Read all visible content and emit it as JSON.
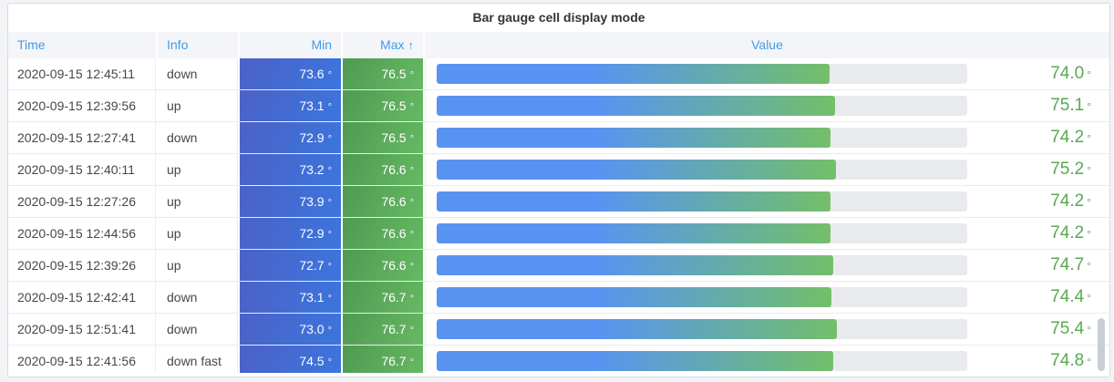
{
  "panel": {
    "title": "Bar gauge cell display mode"
  },
  "table": {
    "columns": [
      {
        "label": "Time",
        "align": "left"
      },
      {
        "label": "Info",
        "align": "left"
      },
      {
        "label": "Min",
        "align": "right"
      },
      {
        "label": "Max",
        "align": "right",
        "sorted": "ascending"
      },
      {
        "label": "Value",
        "align": "center"
      }
    ],
    "sort_icon": "↑",
    "unit": "°",
    "rows": [
      {
        "time": "2020-09-15 12:45:11",
        "info": "down",
        "min": "73.6",
        "max": "76.5",
        "value": "74.0",
        "value_pct": 74.0
      },
      {
        "time": "2020-09-15 12:39:56",
        "info": "up",
        "min": "73.1",
        "max": "76.5",
        "value": "75.1",
        "value_pct": 75.1
      },
      {
        "time": "2020-09-15 12:27:41",
        "info": "down",
        "min": "72.9",
        "max": "76.5",
        "value": "74.2",
        "value_pct": 74.2
      },
      {
        "time": "2020-09-15 12:40:11",
        "info": "up",
        "min": "73.2",
        "max": "76.6",
        "value": "75.2",
        "value_pct": 75.2
      },
      {
        "time": "2020-09-15 12:27:26",
        "info": "up",
        "min": "73.9",
        "max": "76.6",
        "value": "74.2",
        "value_pct": 74.2
      },
      {
        "time": "2020-09-15 12:44:56",
        "info": "up",
        "min": "72.9",
        "max": "76.6",
        "value": "74.2",
        "value_pct": 74.2
      },
      {
        "time": "2020-09-15 12:39:26",
        "info": "up",
        "min": "72.7",
        "max": "76.6",
        "value": "74.7",
        "value_pct": 74.7
      },
      {
        "time": "2020-09-15 12:42:41",
        "info": "down",
        "min": "73.1",
        "max": "76.7",
        "value": "74.4",
        "value_pct": 74.4
      },
      {
        "time": "2020-09-15 12:51:41",
        "info": "down",
        "min": "73.0",
        "max": "76.7",
        "value": "75.4",
        "value_pct": 75.4
      },
      {
        "time": "2020-09-15 12:41:56",
        "info": "down fast",
        "min": "74.5",
        "max": "76.7",
        "value": "74.8",
        "value_pct": 74.8
      }
    ]
  },
  "chart_data": {
    "type": "table",
    "title": "Bar gauge cell display mode",
    "columns": [
      "Time",
      "Info",
      "Min",
      "Max",
      "Value"
    ],
    "sorted_by": {
      "column": "Max",
      "direction": "ascending"
    },
    "unit": "°",
    "gauge_range": [
      0,
      100
    ],
    "rows": [
      [
        "2020-09-15 12:45:11",
        "down",
        73.6,
        76.5,
        74.0
      ],
      [
        "2020-09-15 12:39:56",
        "up",
        73.1,
        76.5,
        75.1
      ],
      [
        "2020-09-15 12:27:41",
        "down",
        72.9,
        76.5,
        74.2
      ],
      [
        "2020-09-15 12:40:11",
        "up",
        73.2,
        76.6,
        75.2
      ],
      [
        "2020-09-15 12:27:26",
        "up",
        73.9,
        76.6,
        74.2
      ],
      [
        "2020-09-15 12:44:56",
        "up",
        72.9,
        76.6,
        74.2
      ],
      [
        "2020-09-15 12:39:26",
        "up",
        72.7,
        76.6,
        74.7
      ],
      [
        "2020-09-15 12:42:41",
        "down",
        73.1,
        76.7,
        74.4
      ],
      [
        "2020-09-15 12:51:41",
        "down",
        73.0,
        76.7,
        75.4
      ],
      [
        "2020-09-15 12:41:56",
        "down fast",
        74.5,
        76.7,
        74.8
      ]
    ]
  },
  "colors": {
    "page_background": "#f2f3f6",
    "panel_background": "#ffffff",
    "panel_border": "#d9dbe0",
    "header_background": "#f4f5f9",
    "header_text_blue": "#3f9ce5",
    "body_text": "#45474d",
    "min_cell_gradient": [
      "#4c61c6",
      "#3b76de"
    ],
    "max_cell_gradient": [
      "#4f9a52",
      "#67b963"
    ],
    "bar_gradient": [
      "#5794f2",
      "#73bf69"
    ],
    "bar_track": "#e9eaed",
    "value_text_green": "#58a952",
    "scrollbar_thumb": "#c9ced6"
  }
}
